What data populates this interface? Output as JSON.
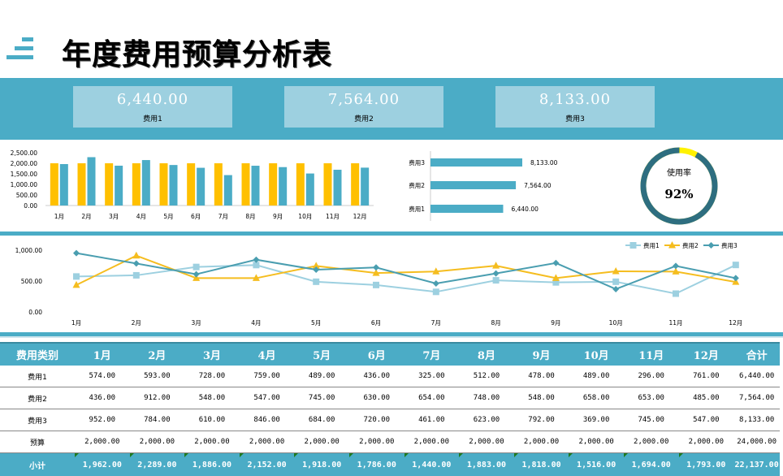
{
  "header": {
    "title": "年度费用预算分析表",
    "icon": "menu-lines-icon"
  },
  "kpis": [
    {
      "value": "6,440.00",
      "label": "费用1"
    },
    {
      "value": "7,564.00",
      "label": "费用2"
    },
    {
      "value": "8,133.00",
      "label": "费用3"
    }
  ],
  "gauge": {
    "label": "使用率",
    "value_text": "92%",
    "value": 0.92,
    "color_used": "#2E6E80",
    "color_rest": "#FFF200"
  },
  "colors": {
    "accent": "#4BACC6",
    "light": "#9DD0E0",
    "yellow": "#FFC000",
    "series1": "#9DD0E0",
    "series2": "#F5BD1F",
    "series3": "#4A9EB0"
  },
  "chart_data": [
    {
      "type": "bar",
      "title": "",
      "categories": [
        "1月",
        "2月",
        "3月",
        "4月",
        "5月",
        "6月",
        "7月",
        "8月",
        "9月",
        "10月",
        "11月",
        "12月"
      ],
      "series": [
        {
          "name": "预算",
          "values": [
            2000,
            2000,
            2000,
            2000,
            2000,
            2000,
            2000,
            2000,
            2000,
            2000,
            2000,
            2000
          ]
        },
        {
          "name": "小计",
          "values": [
            1962,
            2289,
            1886,
            2152,
            1918,
            1786,
            1440,
            1883,
            1818,
            1516,
            1694,
            1793
          ]
        }
      ],
      "ylim": [
        0,
        2500
      ],
      "yticks": [
        "0.00",
        "500.00",
        "1,000.00",
        "1,500.00",
        "2,000.00",
        "2,500.00"
      ]
    },
    {
      "type": "bar",
      "orientation": "horizontal",
      "categories": [
        "费用1",
        "费用2",
        "费用3"
      ],
      "values": [
        6440,
        7564,
        8133
      ],
      "labels": [
        "6,440.00",
        "7,564.00",
        "8,133.00"
      ]
    },
    {
      "type": "line",
      "categories": [
        "1月",
        "2月",
        "3月",
        "4月",
        "5月",
        "6月",
        "7月",
        "8月",
        "9月",
        "10月",
        "11月",
        "12月"
      ],
      "series": [
        {
          "name": "费用1",
          "values": [
            574,
            593,
            728,
            759,
            489,
            436,
            325,
            512,
            478,
            489,
            296,
            761
          ]
        },
        {
          "name": "费用2",
          "values": [
            436,
            912,
            548,
            547,
            745,
            630,
            654,
            748,
            548,
            658,
            653,
            485
          ]
        },
        {
          "name": "费用3",
          "values": [
            952,
            784,
            610,
            846,
            684,
            720,
            461,
            623,
            792,
            369,
            745,
            547
          ]
        }
      ],
      "ylim": [
        0,
        1000
      ],
      "yticks": [
        "0.00",
        "500.00",
        "1,000.00"
      ],
      "legend": "top-right"
    }
  ],
  "table": {
    "headers": [
      "费用类别",
      "1月",
      "2月",
      "3月",
      "4月",
      "5月",
      "6月",
      "7月",
      "8月",
      "9月",
      "10月",
      "11月",
      "12月",
      "合计"
    ],
    "rows": [
      [
        "费用1",
        "574.00",
        "593.00",
        "728.00",
        "759.00",
        "489.00",
        "436.00",
        "325.00",
        "512.00",
        "478.00",
        "489.00",
        "296.00",
        "761.00",
        "6,440.00"
      ],
      [
        "费用2",
        "436.00",
        "912.00",
        "548.00",
        "547.00",
        "745.00",
        "630.00",
        "654.00",
        "748.00",
        "548.00",
        "658.00",
        "653.00",
        "485.00",
        "7,564.00"
      ],
      [
        "费用3",
        "952.00",
        "784.00",
        "610.00",
        "846.00",
        "684.00",
        "720.00",
        "461.00",
        "623.00",
        "792.00",
        "369.00",
        "745.00",
        "547.00",
        "8,133.00"
      ],
      [
        "预算",
        "2,000.00",
        "2,000.00",
        "2,000.00",
        "2,000.00",
        "2,000.00",
        "2,000.00",
        "2,000.00",
        "2,000.00",
        "2,000.00",
        "2,000.00",
        "2,000.00",
        "2,000.00",
        "24,000.00"
      ]
    ],
    "subtotal": [
      "小计",
      "1,962.00",
      "2,289.00",
      "1,886.00",
      "2,152.00",
      "1,918.00",
      "1,786.00",
      "1,440.00",
      "1,883.00",
      "1,818.00",
      "1,516.00",
      "1,694.00",
      "1,793.00",
      "22,137.00"
    ]
  }
}
